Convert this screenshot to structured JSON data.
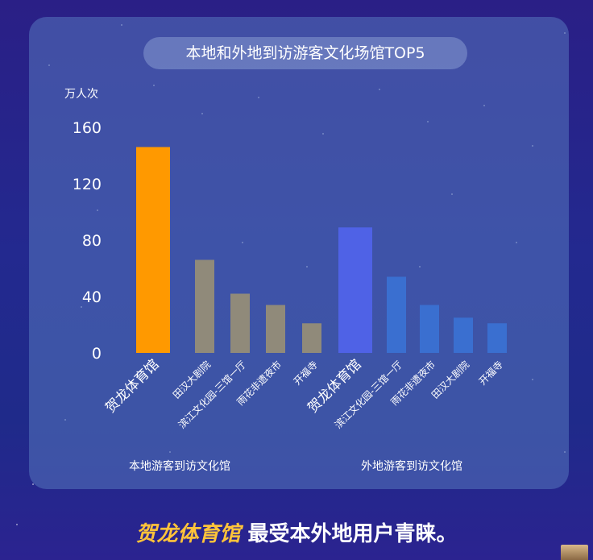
{
  "chart_data": {
    "type": "bar",
    "title": "本地和外地到访游客文化场馆TOP5",
    "ylabel": "万人次",
    "ylim": [
      0,
      160
    ],
    "yticks": [
      "160",
      "120",
      "80",
      "40",
      "0"
    ],
    "groups": [
      {
        "name": "本地游客到访文化馆",
        "categories": [
          "贺龙体育馆",
          "田汉大剧院",
          "滨江文化园-三馆一厅",
          "雨花非遗夜市",
          "开福寺"
        ],
        "values": [
          146,
          66,
          42,
          34,
          21
        ],
        "colors": [
          "#ff9900",
          "#908a7a",
          "#908a7a",
          "#908a7a",
          "#908a7a"
        ]
      },
      {
        "name": "外地游客到访文化馆",
        "categories": [
          "贺龙体育馆",
          "滨江文化园-三馆一厅",
          "雨花非遗夜市",
          "田汉大剧院",
          "开福寺"
        ],
        "values": [
          89,
          54,
          34,
          25,
          21
        ],
        "colors": [
          "#4f62e6",
          "#3a6fd0",
          "#3a6fd0",
          "#3a6fd0",
          "#3a6fd0"
        ]
      }
    ]
  },
  "footer": {
    "highlight": "贺龙体育馆",
    "text": "最受本外地用户青睐。"
  },
  "colors": {
    "background": "#24288d",
    "panel": "#5676be",
    "local_top": "#ff9900",
    "local_other": "#908a7a",
    "visitor_top": "#4f62e6",
    "visitor_other": "#3a6fd0",
    "highlight_text": "#ffc33a"
  }
}
